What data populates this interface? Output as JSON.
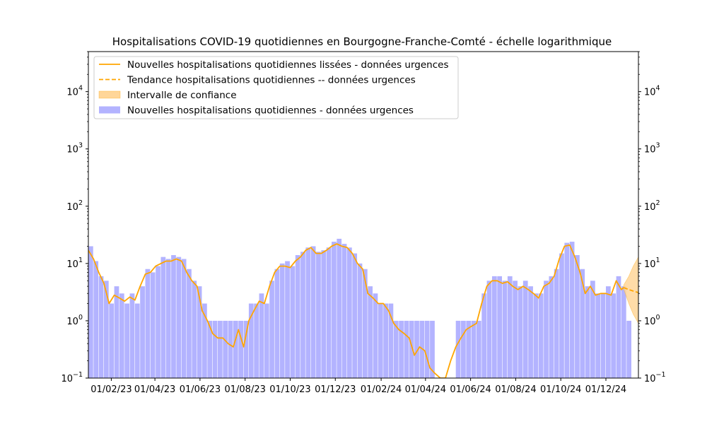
{
  "chart_data": {
    "type": "bar",
    "title": "Hospitalisations COVID-19 quotidiennes en Bourgogne-Franche-Comté - échelle logarithmique",
    "xlabel": "",
    "ylabel": "",
    "y_scale": "log",
    "ylim": [
      0.1,
      50000
    ],
    "xlim": [
      "2023-01-01",
      "2025-01-14"
    ],
    "grid": false,
    "legend_position": "top-left",
    "x_tick_labels": [
      "01/02/23",
      "01/04/23",
      "01/06/23",
      "01/08/23",
      "01/10/23",
      "01/12/23",
      "01/02/24",
      "01/04/24",
      "01/06/24",
      "01/08/24",
      "01/10/24",
      "01/12/24"
    ],
    "y_ticks": [
      0.1,
      1,
      10,
      100,
      1000,
      10000
    ],
    "y_tick_labels": [
      {
        "base": "10",
        "exp": "−1"
      },
      {
        "base": "10",
        "exp": "0"
      },
      {
        "base": "10",
        "exp": "1"
      },
      {
        "base": "10",
        "exp": "2"
      },
      {
        "base": "10",
        "exp": "3"
      },
      {
        "base": "10",
        "exp": "4"
      }
    ],
    "colors": {
      "bars": "#b3b3ff",
      "smoothed": "#ffa500",
      "confidence": "#ffd699"
    },
    "series": [
      {
        "name": "Nouvelles hospitalisations quotidiennes lissées - données urgences",
        "kind": "line",
        "style": "solid",
        "points": [
          [
            "2023-01-01",
            17
          ],
          [
            "2023-01-08",
            12
          ],
          [
            "2023-01-15",
            7
          ],
          [
            "2023-01-22",
            4.5
          ],
          [
            "2023-01-29",
            2
          ],
          [
            "2023-02-05",
            2.8
          ],
          [
            "2023-02-12",
            2.5
          ],
          [
            "2023-02-19",
            2.2
          ],
          [
            "2023-02-26",
            2.6
          ],
          [
            "2023-03-05",
            2.3
          ],
          [
            "2023-03-12",
            4
          ],
          [
            "2023-03-19",
            6.5
          ],
          [
            "2023-03-26",
            7
          ],
          [
            "2023-04-02",
            9
          ],
          [
            "2023-04-09",
            10
          ],
          [
            "2023-04-16",
            11
          ],
          [
            "2023-04-23",
            11
          ],
          [
            "2023-04-30",
            12
          ],
          [
            "2023-05-07",
            11
          ],
          [
            "2023-05-14",
            7
          ],
          [
            "2023-05-21",
            5
          ],
          [
            "2023-05-28",
            4
          ],
          [
            "2023-06-04",
            1.5
          ],
          [
            "2023-06-11",
            1
          ],
          [
            "2023-06-18",
            0.6
          ],
          [
            "2023-06-25",
            0.5
          ],
          [
            "2023-07-02",
            0.5
          ],
          [
            "2023-07-09",
            0.4
          ],
          [
            "2023-07-16",
            0.35
          ],
          [
            "2023-07-23",
            0.7
          ],
          [
            "2023-07-30",
            0.35
          ],
          [
            "2023-08-06",
            1
          ],
          [
            "2023-08-13",
            1.5
          ],
          [
            "2023-08-20",
            2.2
          ],
          [
            "2023-08-27",
            2
          ],
          [
            "2023-09-03",
            4
          ],
          [
            "2023-09-10",
            7
          ],
          [
            "2023-09-17",
            9
          ],
          [
            "2023-09-24",
            9
          ],
          [
            "2023-10-01",
            8.5
          ],
          [
            "2023-10-08",
            11
          ],
          [
            "2023-10-15",
            13
          ],
          [
            "2023-10-22",
            17
          ],
          [
            "2023-10-29",
            19
          ],
          [
            "2023-11-05",
            15
          ],
          [
            "2023-11-12",
            15
          ],
          [
            "2023-11-19",
            17
          ],
          [
            "2023-11-26",
            20
          ],
          [
            "2023-12-03",
            22
          ],
          [
            "2023-12-10",
            20
          ],
          [
            "2023-12-17",
            19
          ],
          [
            "2023-12-24",
            15
          ],
          [
            "2023-12-31",
            10
          ],
          [
            "2024-01-07",
            8
          ],
          [
            "2024-01-14",
            3
          ],
          [
            "2024-01-21",
            2.5
          ],
          [
            "2024-01-28",
            2
          ],
          [
            "2024-02-04",
            2
          ],
          [
            "2024-02-11",
            1.5
          ],
          [
            "2024-02-18",
            0.9
          ],
          [
            "2024-02-25",
            0.7
          ],
          [
            "2024-03-03",
            0.6
          ],
          [
            "2024-03-10",
            0.5
          ],
          [
            "2024-03-17",
            0.25
          ],
          [
            "2024-03-24",
            0.35
          ],
          [
            "2024-03-31",
            0.3
          ],
          [
            "2024-04-07",
            0.15
          ],
          [
            "2024-04-14",
            0.12
          ],
          [
            "2024-04-21",
            0.1
          ],
          [
            "2024-04-28",
            0.1
          ],
          [
            "2024-05-05",
            0.2
          ],
          [
            "2024-05-12",
            0.35
          ],
          [
            "2024-05-19",
            0.5
          ],
          [
            "2024-05-26",
            0.7
          ],
          [
            "2024-06-02",
            0.8
          ],
          [
            "2024-06-09",
            0.9
          ],
          [
            "2024-06-16",
            2
          ],
          [
            "2024-06-23",
            4
          ],
          [
            "2024-06-30",
            5
          ],
          [
            "2024-07-07",
            5
          ],
          [
            "2024-07-14",
            4.5
          ],
          [
            "2024-07-21",
            4.8
          ],
          [
            "2024-07-28",
            4
          ],
          [
            "2024-08-04",
            3.5
          ],
          [
            "2024-08-11",
            4
          ],
          [
            "2024-08-18",
            3.5
          ],
          [
            "2024-08-25",
            3
          ],
          [
            "2024-09-01",
            2.5
          ],
          [
            "2024-09-08",
            4
          ],
          [
            "2024-09-15",
            4.5
          ],
          [
            "2024-09-22",
            6
          ],
          [
            "2024-09-29",
            12
          ],
          [
            "2024-10-06",
            20
          ],
          [
            "2024-10-13",
            21
          ],
          [
            "2024-10-20",
            13
          ],
          [
            "2024-10-27",
            7
          ],
          [
            "2024-11-03",
            3
          ],
          [
            "2024-11-10",
            4
          ],
          [
            "2024-11-17",
            2.8
          ],
          [
            "2024-11-24",
            3
          ],
          [
            "2024-12-01",
            3
          ],
          [
            "2024-12-08",
            2.8
          ],
          [
            "2024-12-15",
            5
          ],
          [
            "2024-12-22",
            3.5
          ],
          [
            "2024-12-25",
            3.8
          ]
        ]
      },
      {
        "name": "Tendance hospitalisations quotidiennes -- données urgences",
        "kind": "line",
        "style": "dashed",
        "points": [
          [
            "2024-12-25",
            3.8
          ],
          [
            "2025-01-01",
            3.5
          ],
          [
            "2025-01-07",
            3.3
          ],
          [
            "2025-01-14",
            3.1
          ]
        ]
      },
      {
        "name": "Intervalle de confiance",
        "kind": "band",
        "lower": [
          [
            "2024-12-25",
            3.6
          ],
          [
            "2025-01-01",
            2
          ],
          [
            "2025-01-07",
            1.3
          ],
          [
            "2025-01-14",
            0.9
          ]
        ],
        "upper": [
          [
            "2024-12-25",
            4.2
          ],
          [
            "2025-01-01",
            6
          ],
          [
            "2025-01-07",
            9
          ],
          [
            "2025-01-14",
            13
          ]
        ]
      },
      {
        "name": "Nouvelles hospitalisations quotidiennes - données urgences",
        "kind": "bars",
        "values": [
          [
            "2023-01-01",
            20
          ],
          [
            "2023-01-08",
            11
          ],
          [
            "2023-01-15",
            6
          ],
          [
            "2023-01-22",
            5
          ],
          [
            "2023-01-29",
            2
          ],
          [
            "2023-02-05",
            4
          ],
          [
            "2023-02-12",
            3
          ],
          [
            "2023-02-19",
            2
          ],
          [
            "2023-02-26",
            3
          ],
          [
            "2023-03-05",
            2
          ],
          [
            "2023-03-12",
            4
          ],
          [
            "2023-03-19",
            8
          ],
          [
            "2023-03-26",
            7
          ],
          [
            "2023-04-02",
            9
          ],
          [
            "2023-04-09",
            13
          ],
          [
            "2023-04-16",
            12
          ],
          [
            "2023-04-23",
            14
          ],
          [
            "2023-04-30",
            13
          ],
          [
            "2023-05-07",
            12
          ],
          [
            "2023-05-14",
            8
          ],
          [
            "2023-05-21",
            5
          ],
          [
            "2023-05-28",
            4
          ],
          [
            "2023-06-04",
            2
          ],
          [
            "2023-06-11",
            1
          ],
          [
            "2023-06-18",
            1
          ],
          [
            "2023-06-25",
            1
          ],
          [
            "2023-07-02",
            1
          ],
          [
            "2023-07-09",
            1
          ],
          [
            "2023-07-16",
            1
          ],
          [
            "2023-07-23",
            1
          ],
          [
            "2023-07-30",
            1
          ],
          [
            "2023-08-06",
            2
          ],
          [
            "2023-08-13",
            2
          ],
          [
            "2023-08-20",
            3
          ],
          [
            "2023-08-27",
            2
          ],
          [
            "2023-09-03",
            5
          ],
          [
            "2023-09-10",
            8
          ],
          [
            "2023-09-17",
            10
          ],
          [
            "2023-09-24",
            11
          ],
          [
            "2023-10-01",
            9
          ],
          [
            "2023-10-08",
            14
          ],
          [
            "2023-10-15",
            16
          ],
          [
            "2023-10-22",
            19
          ],
          [
            "2023-10-29",
            20
          ],
          [
            "2023-11-05",
            16
          ],
          [
            "2023-11-12",
            17
          ],
          [
            "2023-11-19",
            19
          ],
          [
            "2023-11-26",
            24
          ],
          [
            "2023-12-03",
            27
          ],
          [
            "2023-12-10",
            22
          ],
          [
            "2023-12-17",
            19
          ],
          [
            "2023-12-24",
            15
          ],
          [
            "2023-12-31",
            10
          ],
          [
            "2024-01-07",
            8
          ],
          [
            "2024-01-14",
            4
          ],
          [
            "2024-01-21",
            3
          ],
          [
            "2024-01-28",
            2
          ],
          [
            "2024-02-04",
            2
          ],
          [
            "2024-02-11",
            2
          ],
          [
            "2024-02-18",
            1
          ],
          [
            "2024-02-25",
            1
          ],
          [
            "2024-03-03",
            1
          ],
          [
            "2024-03-10",
            1
          ],
          [
            "2024-03-17",
            1
          ],
          [
            "2024-03-24",
            1
          ],
          [
            "2024-03-31",
            1
          ],
          [
            "2024-04-07",
            1
          ],
          [
            "2024-05-12",
            1
          ],
          [
            "2024-05-19",
            1
          ],
          [
            "2024-05-26",
            1
          ],
          [
            "2024-06-02",
            1
          ],
          [
            "2024-06-09",
            1
          ],
          [
            "2024-06-16",
            3
          ],
          [
            "2024-06-23",
            5
          ],
          [
            "2024-06-30",
            6
          ],
          [
            "2024-07-07",
            6
          ],
          [
            "2024-07-14",
            5
          ],
          [
            "2024-07-21",
            6
          ],
          [
            "2024-07-28",
            5
          ],
          [
            "2024-08-04",
            4
          ],
          [
            "2024-08-11",
            5
          ],
          [
            "2024-08-18",
            4
          ],
          [
            "2024-08-25",
            3
          ],
          [
            "2024-09-01",
            3
          ],
          [
            "2024-09-08",
            5
          ],
          [
            "2024-09-15",
            6
          ],
          [
            "2024-09-22",
            8
          ],
          [
            "2024-09-29",
            15
          ],
          [
            "2024-10-06",
            23
          ],
          [
            "2024-10-13",
            24
          ],
          [
            "2024-10-20",
            14
          ],
          [
            "2024-10-27",
            8
          ],
          [
            "2024-11-03",
            4
          ],
          [
            "2024-11-10",
            5
          ],
          [
            "2024-11-17",
            3
          ],
          [
            "2024-11-24",
            3
          ],
          [
            "2024-12-01",
            4
          ],
          [
            "2024-12-08",
            3
          ],
          [
            "2024-12-15",
            6
          ],
          [
            "2024-12-22",
            4
          ],
          [
            "2024-12-29",
            1
          ]
        ]
      }
    ]
  }
}
